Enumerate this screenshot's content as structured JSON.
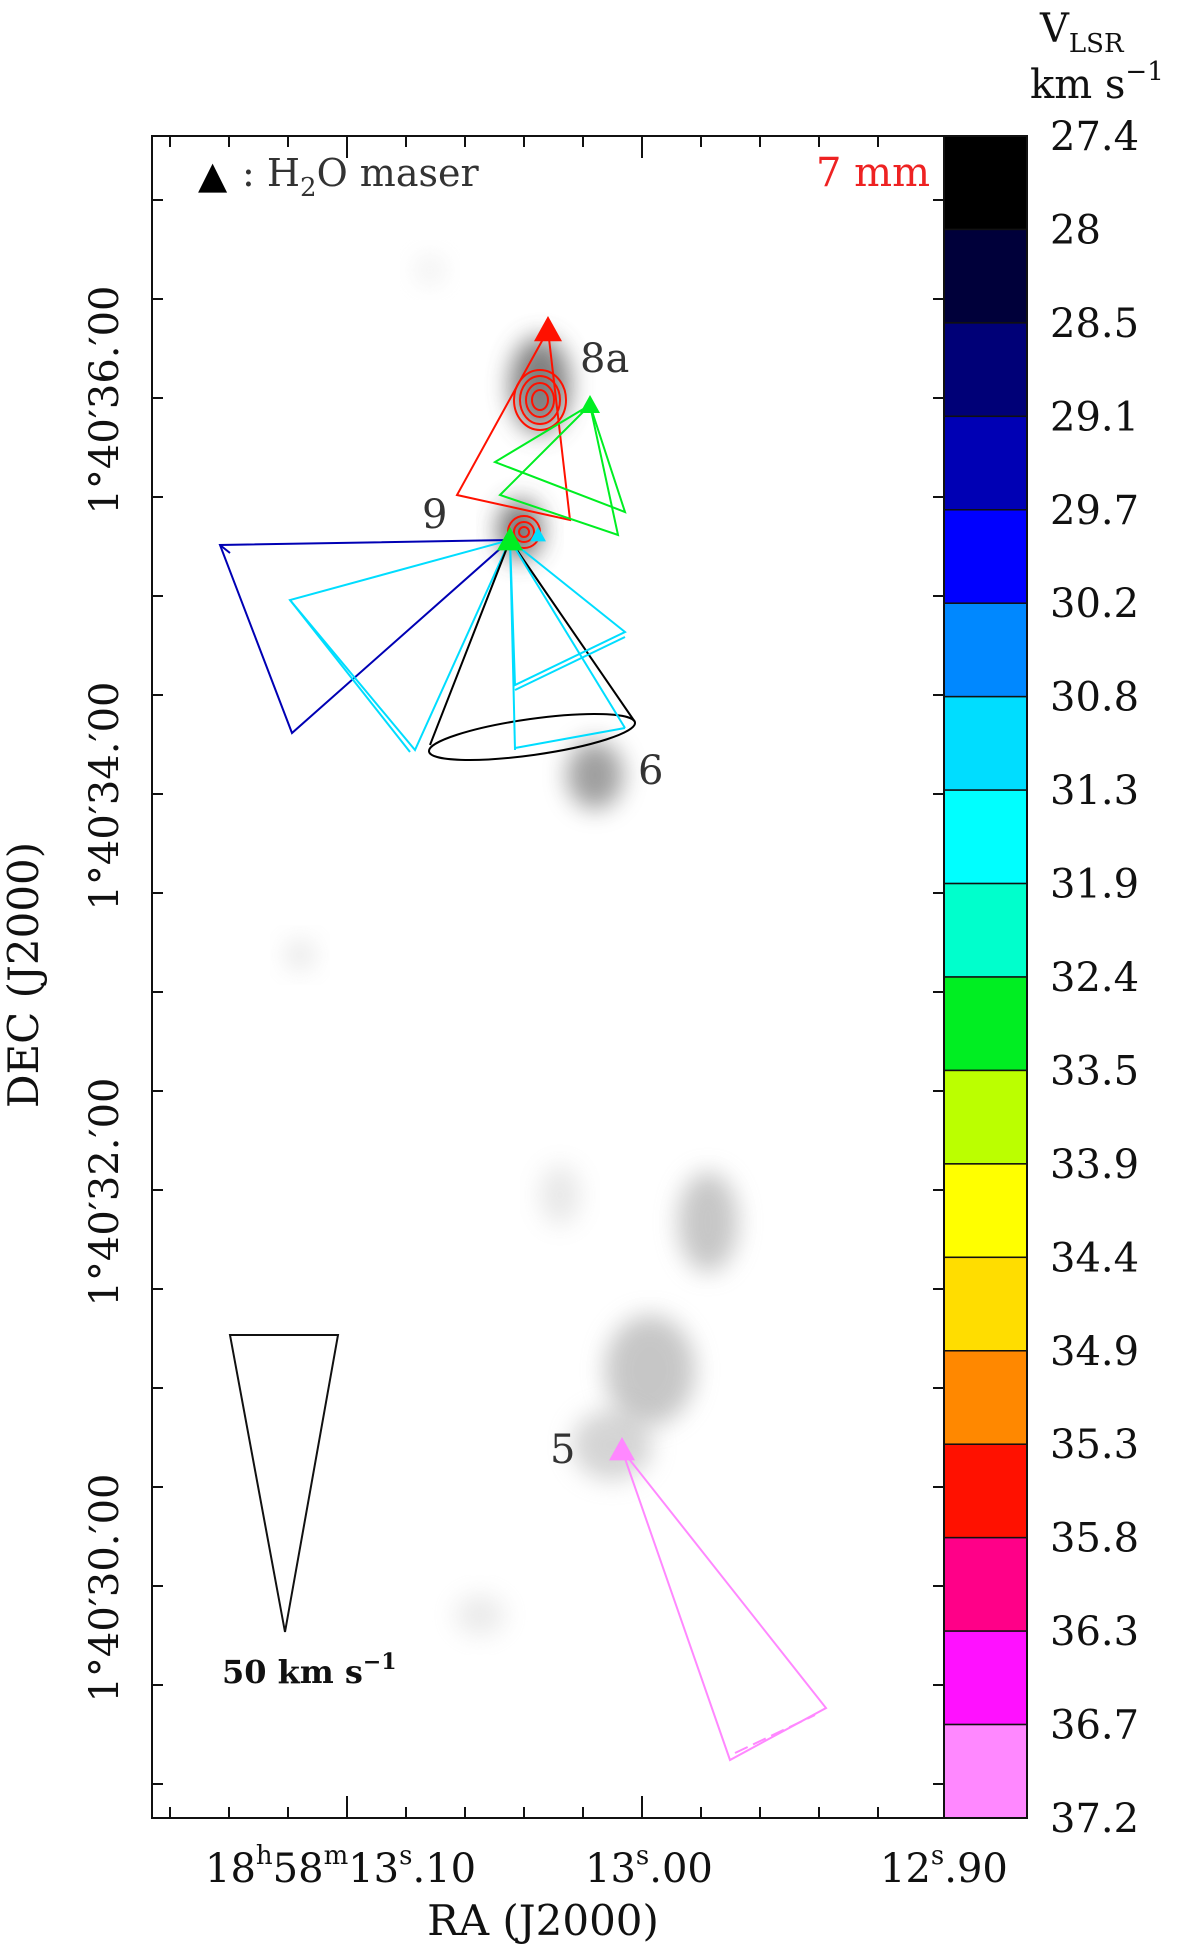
{
  "chart_data": {
    "type": "scatter",
    "title": "",
    "band_label": "7 mm",
    "legend": {
      "symbol": "▲",
      "prefix": ": ",
      "text_main": "H",
      "text_sub": "2",
      "text_tail": "O maser"
    },
    "xlabel": "RA (J2000)",
    "ylabel": "DEC (J2000)",
    "x_ticks": [
      {
        "main": "18",
        "sup1": "h",
        "mid": "58",
        "sup2": "m",
        "mid2": "13",
        "sup3": "s",
        "tail": ".10",
        "value": 13.1
      },
      {
        "main": "13",
        "sup1": "",
        "mid": "",
        "sup2": "",
        "mid2": "",
        "sup3": "s",
        "tail": ".00",
        "value": 13.0
      },
      {
        "main": "12",
        "sup1": "",
        "mid": "",
        "sup2": "",
        "mid2": "",
        "sup3": "s",
        "tail": ".90",
        "value": 12.9
      }
    ],
    "y_ticks": [
      "1°40′36.′00",
      "1°40′34.′00",
      "1°40′32.′00",
      "1°40′30.′00"
    ],
    "y_tick_values": [
      36,
      34,
      32,
      30
    ],
    "sources": [
      {
        "label": "8a"
      },
      {
        "label": "9"
      },
      {
        "label": "6"
      },
      {
        "label": "5"
      }
    ],
    "scale_bar": {
      "label_main": "50 km s",
      "label_sup": "−1",
      "velocity": 50
    },
    "colorbar": {
      "title_main": "V",
      "title_sub": "LSR",
      "unit_main": "km s",
      "unit_sup": "−1",
      "ticks": [
        "27.4",
        "28",
        "28.5",
        "29.1",
        "29.7",
        "30.2",
        "30.8",
        "31.3",
        "31.9",
        "32.4",
        "33.5",
        "33.9",
        "34.4",
        "34.9",
        "35.3",
        "35.8",
        "36.3",
        "36.7",
        "37.2"
      ],
      "colors": [
        "#000000",
        "#00003a",
        "#000077",
        "#0000b4",
        "#0000ff",
        "#0088ff",
        "#00ddff",
        "#00ffff",
        "#00ffcc",
        "#00ee22",
        "#bbff00",
        "#ffff00",
        "#ffdd00",
        "#ff8800",
        "#ff1100",
        "#ff0088",
        "#ff11ff",
        "#ff88ff"
      ]
    },
    "masers": [
      {
        "color": "#ff1100"
      },
      {
        "color": "#00ee22"
      },
      {
        "color": "#00ee22"
      },
      {
        "color": "#00ddff"
      },
      {
        "color": "#ff88ff"
      }
    ],
    "outflow_colors": [
      "#0000b4",
      "#00ddff",
      "#000000",
      "#00ddff",
      "#ff1100",
      "#00ee22",
      "#ff88ff"
    ]
  }
}
